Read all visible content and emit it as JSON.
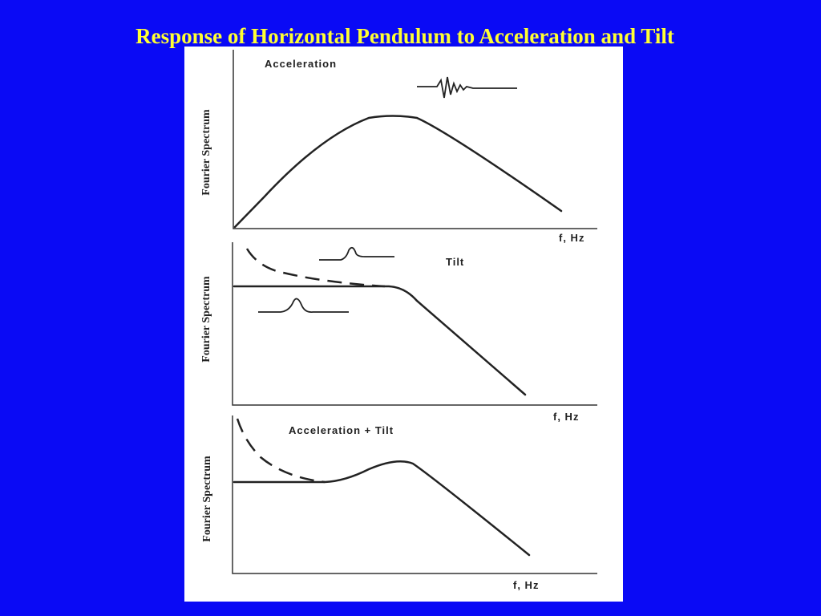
{
  "title": "Response of Horizontal Pendulum to Acceleration and Tilt",
  "panels": [
    {
      "label": "Acceleration",
      "y_axis": "Fourier Spectrum",
      "x_axis": "f, Hz"
    },
    {
      "label": "Tilt",
      "y_axis": "Fourier Spectrum",
      "x_axis": "f, Hz"
    },
    {
      "label": "Acceleration + Tilt",
      "y_axis": "Fourier Spectrum",
      "x_axis": "f, Hz"
    }
  ]
}
